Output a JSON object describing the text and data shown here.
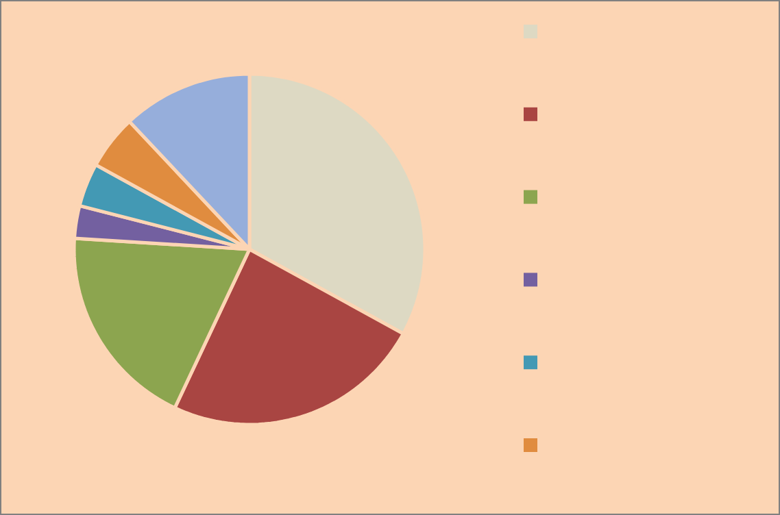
{
  "chart_data": {
    "type": "pie",
    "categories": [
      null,
      null,
      null,
      null,
      null,
      null,
      null
    ],
    "values": [
      33,
      24,
      19,
      3,
      4,
      5,
      12
    ],
    "colors": [
      "#ddd9c3",
      "#a94542",
      "#8ca54f",
      "#7360a0",
      "#4399b4",
      "#e08c3f",
      "#96aedb"
    ]
  }
}
